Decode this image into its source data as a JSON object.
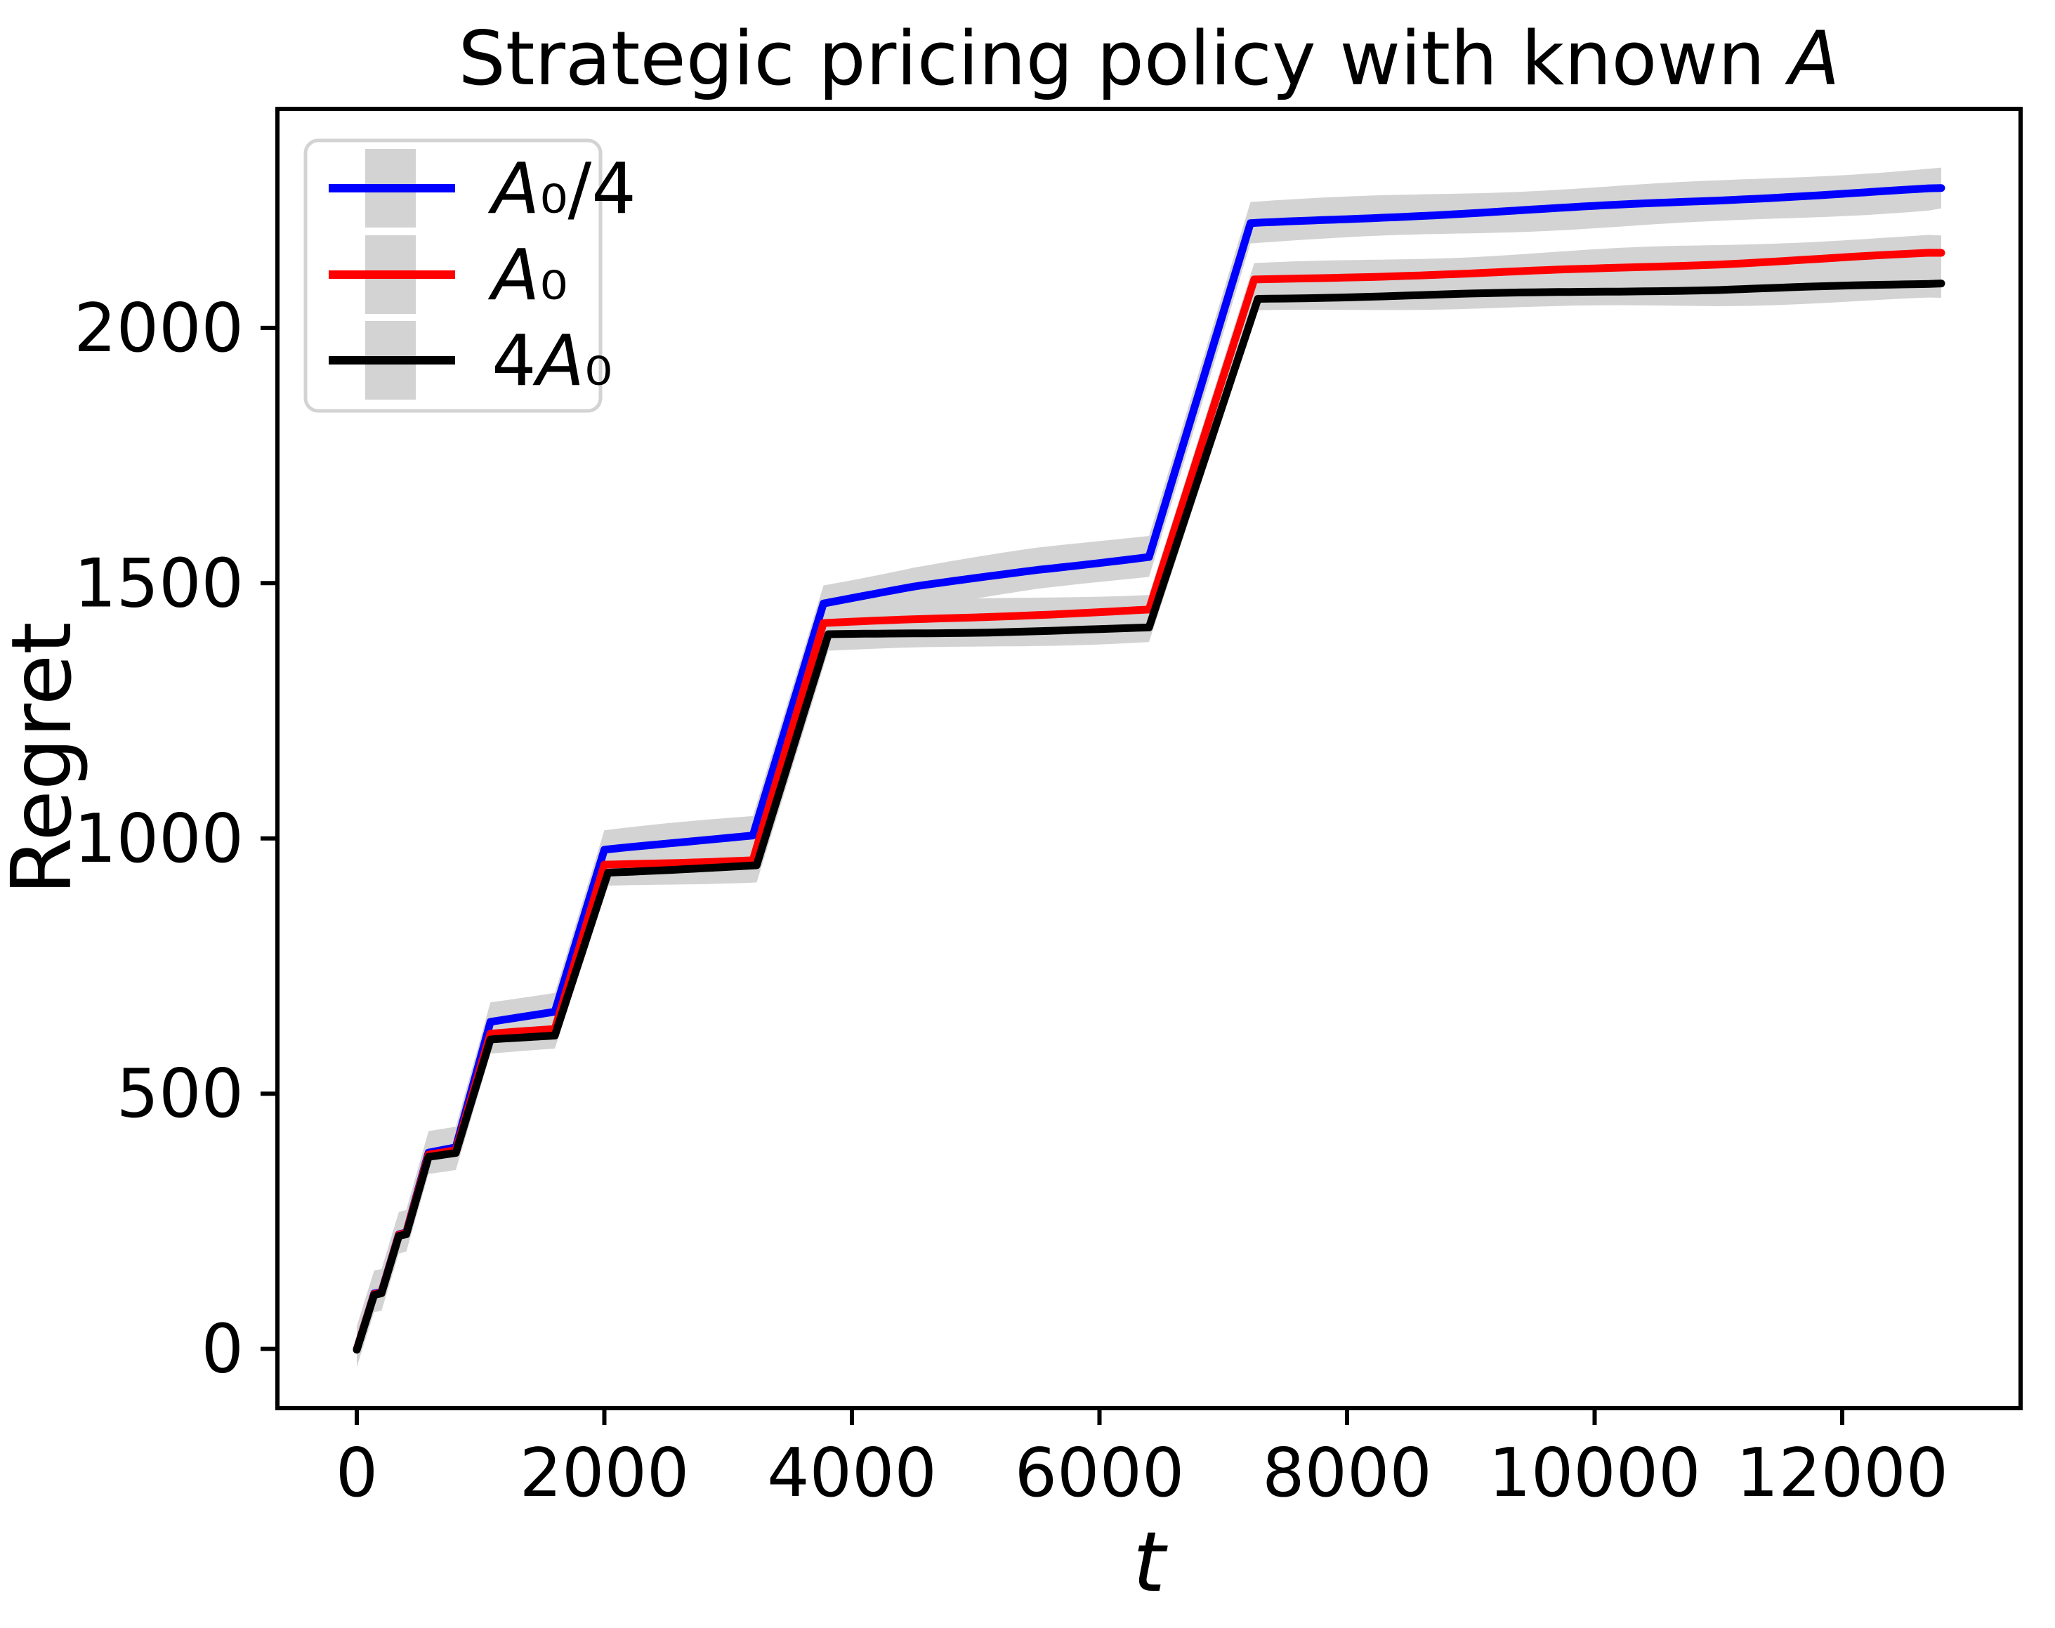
{
  "title_segments": [
    {
      "t": "Strategic pricing policy with known ",
      "i": false
    },
    {
      "t": "A",
      "i": true
    }
  ],
  "chart_data": {
    "type": "line",
    "title": "Strategic pricing policy with known A",
    "xlabel": "t",
    "ylabel": "Regret",
    "xlim": [
      -641,
      13441
    ],
    "ylim": [
      -116,
      2429
    ],
    "x_ticks": [
      0,
      2000,
      4000,
      6000,
      8000,
      10000,
      12000
    ],
    "y_ticks": [
      0,
      500,
      1000,
      1500,
      2000
    ],
    "grid": false,
    "legend_position": "upper-left",
    "band_color": "#d3d3d3",
    "axis_color": "#000000",
    "background_color": "#ffffff",
    "series": [
      {
        "name": "A0/4",
        "label_segments": [
          {
            "t": "A",
            "i": true
          },
          {
            "t": "₀",
            "i": false
          },
          {
            "t": "/4",
            "i": false
          }
        ],
        "color": "#0000ff",
        "band_halfwidth": 40,
        "points": [
          [
            0,
            0
          ],
          [
            140,
            110
          ],
          [
            200,
            113
          ],
          [
            340,
            226
          ],
          [
            400,
            230
          ],
          [
            580,
            386
          ],
          [
            800,
            396
          ],
          [
            1080,
            641
          ],
          [
            1600,
            659
          ],
          [
            2000,
            976
          ],
          [
            3200,
            1006
          ],
          [
            3770,
            1460
          ],
          [
            4500,
            1492
          ],
          [
            5500,
            1527
          ],
          [
            6400,
            1553
          ],
          [
            7220,
            2205
          ],
          [
            8000,
            2213
          ],
          [
            9500,
            2231
          ],
          [
            11000,
            2249
          ],
          [
            12800,
            2274
          ]
        ]
      },
      {
        "name": "A0",
        "label_segments": [
          {
            "t": "A",
            "i": true
          },
          {
            "t": "₀",
            "i": false
          }
        ],
        "color": "#ff0000",
        "band_halfwidth": 34,
        "points": [
          [
            0,
            0
          ],
          [
            140,
            108
          ],
          [
            200,
            111
          ],
          [
            340,
            224
          ],
          [
            400,
            228
          ],
          [
            580,
            381
          ],
          [
            800,
            389
          ],
          [
            1080,
            617
          ],
          [
            1600,
            626
          ],
          [
            2000,
            949
          ],
          [
            3200,
            959
          ],
          [
            3770,
            1422
          ],
          [
            5000,
            1433
          ],
          [
            6400,
            1447
          ],
          [
            7250,
            2093
          ],
          [
            9000,
            2107
          ],
          [
            11000,
            2126
          ],
          [
            12800,
            2147
          ]
        ]
      },
      {
        "name": "4A0",
        "label_segments": [
          {
            "t": "4",
            "i": false
          },
          {
            "t": "A",
            "i": true
          },
          {
            "t": "₀",
            "i": false
          }
        ],
        "color": "#000000",
        "band_halfwidth": 28,
        "points": [
          [
            0,
            0
          ],
          [
            140,
            107
          ],
          [
            200,
            110
          ],
          [
            340,
            222
          ],
          [
            400,
            225
          ],
          [
            580,
            376
          ],
          [
            800,
            383
          ],
          [
            1080,
            605
          ],
          [
            1600,
            613
          ],
          [
            2030,
            933
          ],
          [
            3230,
            946
          ],
          [
            3810,
            1398
          ],
          [
            5000,
            1404
          ],
          [
            6400,
            1413
          ],
          [
            7280,
            2058
          ],
          [
            9000,
            2066
          ],
          [
            11000,
            2074
          ],
          [
            12800,
            2087
          ]
        ]
      }
    ]
  }
}
